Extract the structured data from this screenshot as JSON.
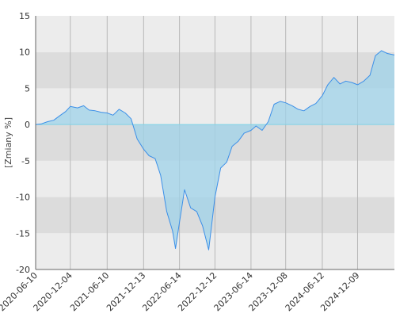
{
  "chart_data": {
    "type": "area",
    "title": "",
    "xlabel": "",
    "ylabel": "[Zmiany %]",
    "ylim": [
      -20,
      15
    ],
    "yticks": [
      -20,
      -15,
      -10,
      -5,
      0,
      5,
      10,
      15
    ],
    "xlim": [
      "2020-06-10",
      "2025-06-15"
    ],
    "xticks": [
      "2020-06-10",
      "2020-12-04",
      "2021-06-10",
      "2021-12-13",
      "2022-06-14",
      "2022-12-12",
      "2023-06-14",
      "2023-12-08",
      "2024-06-12",
      "2024-12-09"
    ],
    "grid": true,
    "banded_background": true,
    "legend": "none",
    "colors": {
      "line": "#3b8fe8",
      "fill": "#9fd3ea",
      "baseline": "#7fd3e6",
      "band_light": "#ececec",
      "band_dark": "#dcdcdc",
      "gridline": "#b8b8b8",
      "axis": "#666666"
    },
    "series": [
      {
        "x": [
          "2020-06-10",
          "2020-07-10",
          "2020-08-10",
          "2020-09-10",
          "2020-10-10",
          "2020-11-10",
          "2020-12-04",
          "2021-01-10",
          "2021-02-10",
          "2021-03-10",
          "2021-04-10",
          "2021-05-10",
          "2021-06-10",
          "2021-07-10",
          "2021-08-10",
          "2021-09-10",
          "2021-10-10",
          "2021-11-10",
          "2021-12-13",
          "2022-01-10",
          "2022-02-10",
          "2022-03-10",
          "2022-04-10",
          "2022-05-10",
          "2022-05-25",
          "2022-06-14",
          "2022-07-10",
          "2022-08-10",
          "2022-09-10",
          "2022-10-10",
          "2022-11-10",
          "2022-12-12",
          "2023-01-10",
          "2023-02-10",
          "2023-03-10",
          "2023-04-10",
          "2023-05-10",
          "2023-06-14",
          "2023-07-10",
          "2023-08-10",
          "2023-09-10",
          "2023-10-10",
          "2023-11-10",
          "2023-12-08",
          "2024-01-10",
          "2024-02-10",
          "2024-03-10",
          "2024-04-10",
          "2024-05-10",
          "2024-06-12",
          "2024-07-10",
          "2024-08-10",
          "2024-09-10",
          "2024-10-10",
          "2024-11-10",
          "2024-12-09",
          "2025-01-10",
          "2025-02-10",
          "2025-03-10",
          "2025-04-10",
          "2025-05-10",
          "2025-06-15"
        ],
        "values": [
          0.0,
          0.1,
          0.4,
          0.6,
          1.2,
          1.8,
          2.5,
          2.3,
          2.6,
          2.0,
          1.9,
          1.7,
          1.6,
          1.3,
          2.1,
          1.6,
          0.8,
          -2.0,
          -3.4,
          -4.3,
          -4.7,
          -7.0,
          -12.0,
          -14.7,
          -17.1,
          -13.5,
          -9.0,
          -11.5,
          -12.0,
          -14.0,
          -17.3,
          -10.0,
          -6.0,
          -5.2,
          -3.0,
          -2.3,
          -1.2,
          -0.8,
          -0.2,
          -0.8,
          0.4,
          2.8,
          3.2,
          3.0,
          2.6,
          2.1,
          1.9,
          2.5,
          2.9,
          4.0,
          5.5,
          6.5,
          5.6,
          6.0,
          5.8,
          5.5,
          6.0,
          6.8,
          9.5,
          10.2,
          9.8,
          9.6
        ]
      }
    ]
  }
}
